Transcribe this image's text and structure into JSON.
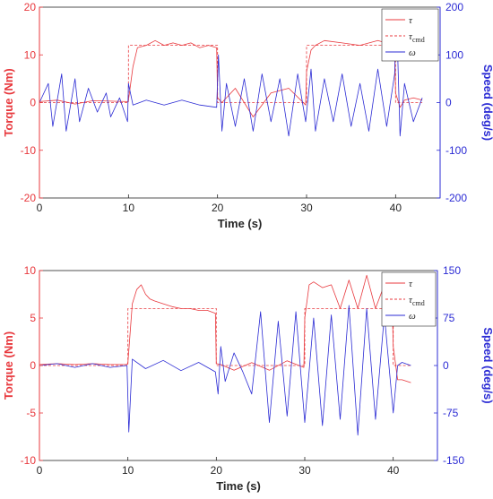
{
  "chart_data": [
    {
      "type": "line",
      "xlabel": "Time (s)",
      "ylabel": "Torque (Nm)",
      "y2label": "Speed (deg/s)",
      "xlim": [
        0,
        45
      ],
      "ylim": [
        -20,
        20
      ],
      "y2lim": [
        -200,
        200
      ],
      "xticks": [
        "0",
        "10",
        "20",
        "30",
        "40"
      ],
      "yticks": [
        "20",
        "10",
        "0",
        "-10",
        "-20"
      ],
      "y2ticks": [
        "200",
        "100",
        "0",
        "-100",
        "-200"
      ],
      "legend": {
        "placement": "top-right",
        "entries": [
          "τ",
          "τcmd",
          "ω"
        ]
      },
      "series": [
        {
          "name": "τ",
          "color": "#e8383d",
          "style": "solid",
          "axis": "left",
          "x": [
            0,
            2,
            4,
            6,
            8,
            9.9,
            10,
            10.5,
            11,
            12,
            13,
            14,
            15,
            16,
            17,
            18,
            19,
            19.9,
            20,
            20.5,
            22,
            24,
            26,
            28,
            29.9,
            30,
            30.5,
            31,
            32,
            34,
            36,
            38,
            39.9,
            40,
            40.5,
            41,
            42,
            43
          ],
          "y": [
            0.2,
            0.5,
            -0.3,
            0.4,
            0.3,
            0.2,
            0.5,
            7.5,
            11.5,
            12.0,
            13.0,
            12.0,
            12.5,
            12.0,
            12.5,
            11.5,
            12.0,
            11.5,
            1.0,
            0.0,
            3.0,
            -3.0,
            2.0,
            3.0,
            -0.5,
            6.5,
            11.0,
            12.0,
            13.0,
            12.5,
            12.0,
            13.0,
            12.0,
            2.0,
            -1.0,
            0.5,
            1.0,
            0.5
          ]
        },
        {
          "name": "τcmd",
          "color": "#e8383d",
          "style": "dashed",
          "axis": "left",
          "x": [
            0,
            10,
            10,
            20,
            20,
            30,
            30,
            40,
            40,
            43
          ],
          "y": [
            0,
            0,
            12,
            12,
            0,
            0,
            12,
            12,
            0,
            0
          ]
        },
        {
          "name": "ω",
          "color": "#2b2bd4",
          "style": "solid",
          "axis": "right",
          "x": [
            0,
            1,
            1.5,
            2.5,
            3,
            4,
            4.5,
            5.5,
            6.5,
            7.5,
            8,
            9,
            9.9,
            10,
            10.5,
            12,
            14,
            16,
            18,
            19.9,
            20.1,
            20.5,
            21,
            22,
            23,
            24,
            25,
            26,
            27,
            28,
            29,
            29.9,
            30.5,
            31,
            32,
            33,
            34,
            35,
            36,
            37,
            38,
            39,
            39.9,
            40.1,
            40.5,
            41,
            42,
            43
          ],
          "y": [
            0,
            40,
            -50,
            60,
            -60,
            50,
            -40,
            30,
            -20,
            20,
            -30,
            10,
            -40,
            40,
            -5,
            5,
            -5,
            5,
            -5,
            -10,
            100,
            -60,
            40,
            -50,
            50,
            -60,
            60,
            -40,
            50,
            -70,
            60,
            -40,
            70,
            -60,
            50,
            -40,
            60,
            -50,
            40,
            -60,
            70,
            -50,
            60,
            190,
            -70,
            40,
            -40,
            10
          ]
        }
      ]
    },
    {
      "type": "line",
      "xlabel": "Time (s)",
      "ylabel": "Torque (Nm)",
      "y2label": "Speed (deg/s)",
      "xlim": [
        0,
        45
      ],
      "ylim": [
        -10,
        10
      ],
      "y2lim": [
        -150,
        150
      ],
      "xticks": [
        "0",
        "10",
        "20",
        "30",
        "40"
      ],
      "yticks": [
        "10",
        "5",
        "0",
        "-5",
        "-10"
      ],
      "y2ticks": [
        "150",
        "75",
        "0",
        "-75",
        "-150"
      ],
      "legend": {
        "placement": "top-right",
        "entries": [
          "τ",
          "τcmd",
          "ω"
        ]
      },
      "series": [
        {
          "name": "τ",
          "color": "#e8383d",
          "style": "solid",
          "axis": "left",
          "x": [
            0,
            2,
            4,
            6,
            8,
            9.9,
            10,
            10.5,
            11,
            11.5,
            12,
            12.5,
            13,
            14,
            15,
            16,
            17,
            18,
            19,
            19.9,
            20,
            20.5,
            22,
            24,
            26,
            28,
            29.9,
            30,
            30.5,
            31,
            32,
            33,
            34,
            35,
            36,
            37,
            38,
            39,
            39.9,
            40,
            40.5,
            41,
            42
          ],
          "y": [
            0.1,
            0.2,
            0.1,
            0.2,
            0.1,
            0.1,
            0.3,
            6.5,
            8.0,
            8.5,
            7.5,
            7.0,
            6.8,
            6.5,
            6.2,
            6.0,
            6.0,
            5.8,
            5.8,
            5.5,
            0.2,
            0.1,
            -0.5,
            0.3,
            -0.5,
            0.5,
            -0.2,
            5.0,
            8.5,
            8.8,
            8.2,
            8.5,
            6.0,
            9.0,
            6.0,
            9.5,
            6.0,
            8.5,
            6.0,
            2.0,
            -1.5,
            -1.5,
            -1.8
          ]
        },
        {
          "name": "τcmd",
          "color": "#e8383d",
          "style": "dashed",
          "axis": "left",
          "x": [
            0,
            10,
            10,
            20,
            20,
            30,
            30,
            40,
            40,
            42
          ],
          "y": [
            0,
            0,
            6,
            6,
            0,
            0,
            6,
            6,
            0,
            0
          ]
        },
        {
          "name": "ω",
          "color": "#2b2bd4",
          "style": "solid",
          "axis": "right",
          "x": [
            0,
            2,
            4,
            6,
            8,
            9.9,
            10.1,
            10.5,
            12,
            14,
            16,
            18,
            19.9,
            20.2,
            20.5,
            21,
            22,
            23,
            24,
            25,
            26,
            27,
            28,
            29,
            30,
            31,
            32,
            33,
            34,
            35,
            36,
            37,
            38,
            39,
            40,
            40.5,
            41,
            42
          ],
          "y": [
            0,
            3,
            -3,
            3,
            -3,
            0,
            -105,
            10,
            -5,
            8,
            -8,
            5,
            -10,
            -45,
            30,
            -25,
            20,
            -10,
            -45,
            85,
            -90,
            70,
            -80,
            85,
            -90,
            75,
            -95,
            80,
            -85,
            95,
            -110,
            90,
            -85,
            80,
            -75,
            0,
            5,
            0
          ]
        }
      ]
    }
  ]
}
